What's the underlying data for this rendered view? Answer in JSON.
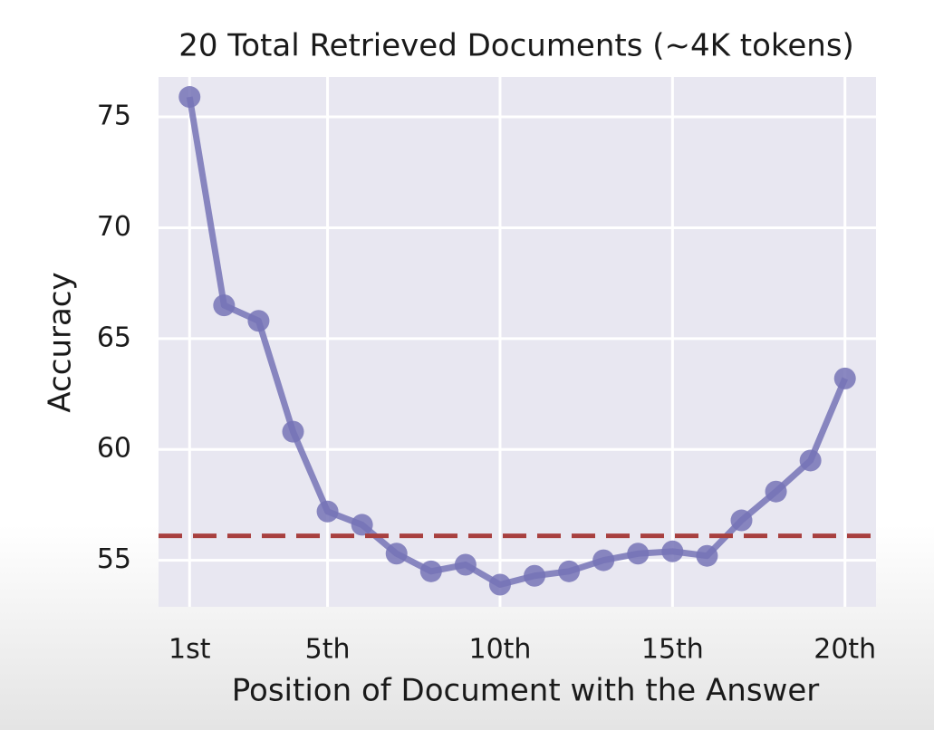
{
  "chart_data": {
    "type": "line",
    "title": "20 Total Retrieved Documents (~4K tokens)",
    "xlabel": "Position of Document with the Answer",
    "ylabel": "Accuracy",
    "x": [
      1,
      2,
      3,
      4,
      5,
      6,
      7,
      8,
      9,
      10,
      11,
      12,
      13,
      14,
      15,
      16,
      17,
      18,
      19,
      20
    ],
    "series": [
      {
        "color": "#7673b6",
        "values": [
          75.9,
          66.5,
          65.8,
          60.8,
          57.2,
          56.6,
          55.3,
          54.5,
          54.8,
          53.9,
          54.3,
          54.5,
          55.0,
          55.3,
          55.4,
          55.2,
          56.8,
          58.1,
          59.5,
          63.2
        ]
      }
    ],
    "reference_line": {
      "value": 56.1,
      "color": "#a8403f"
    },
    "xlim": [
      0.1,
      20.9
    ],
    "ylim": [
      52.9,
      76.8
    ],
    "xticks": [
      {
        "value": 1,
        "label": "1st"
      },
      {
        "value": 5,
        "label": "5th"
      },
      {
        "value": 10,
        "label": "10th"
      },
      {
        "value": 15,
        "label": "15th"
      },
      {
        "value": 20,
        "label": "20th"
      }
    ],
    "yticks": [
      55,
      60,
      65,
      70,
      75
    ],
    "grid": true
  }
}
